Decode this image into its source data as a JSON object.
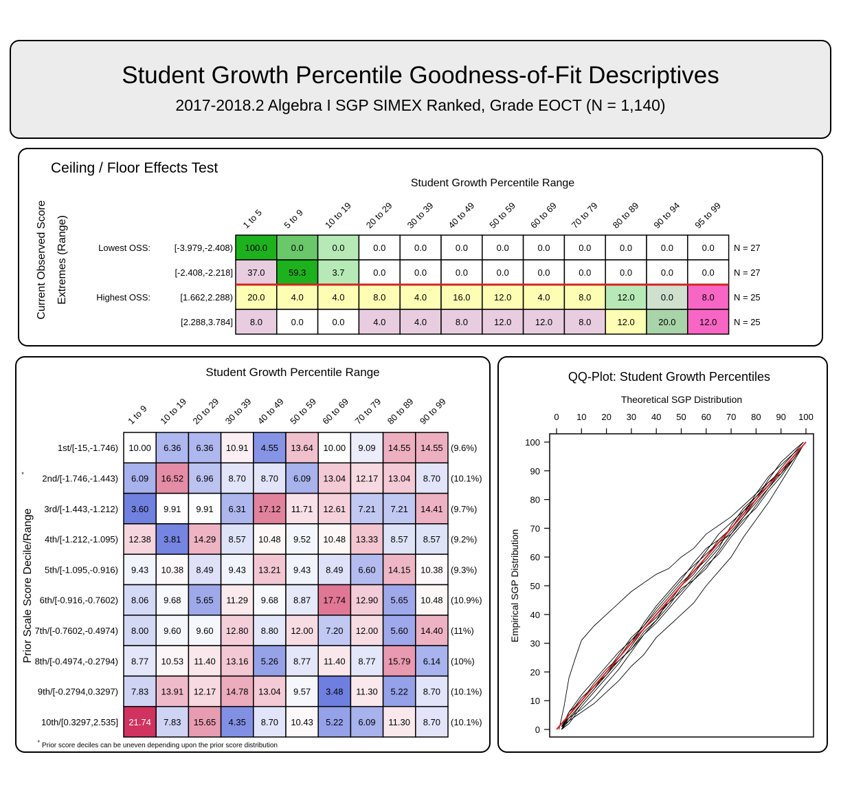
{
  "header": {
    "title": "Student Growth Percentile Goodness-of-Fit Descriptives",
    "subtitle": "2017-2018.2 Algebra I SGP SIMEX Ranked, Grade EOCT (N = 1,140)"
  },
  "chart_data": [
    {
      "type": "table",
      "title": "Ceiling / Floor Effects Test",
      "xlabel": "Student Growth Percentile Range",
      "ylabel": "Current Observed Score Extremes (Range)",
      "columns": [
        "1 to 5",
        "5 to 9",
        "10 to 19",
        "20 to 29",
        "30 to 39",
        "40 to 49",
        "50 to 59",
        "60 to 69",
        "70 to 79",
        "80 to 89",
        "90 to 94",
        "95 to 99"
      ],
      "rows": [
        {
          "group": "Lowest OSS:",
          "range": "[-3.979,-2.408)",
          "n": "N = 27",
          "values": [
            "100.0",
            "0.0",
            "0.0",
            "0.0",
            "0.0",
            "0.0",
            "0.0",
            "0.0",
            "0.0",
            "0.0",
            "0.0",
            "0.0"
          ],
          "colors": [
            "#1db11d",
            "#6ac86a",
            "#b6e9b6",
            "#ffffff",
            "#ffffff",
            "#ffffff",
            "#ffffff",
            "#ffffff",
            "#ffffff",
            "#ffffff",
            "#ffffff",
            "#ffffff"
          ]
        },
        {
          "group": "",
          "range": "[-2.408,-2.218]",
          "n": "N = 27",
          "values": [
            "37.0",
            "59.3",
            "3.7",
            "0.0",
            "0.0",
            "0.0",
            "0.0",
            "0.0",
            "0.0",
            "0.0",
            "0.0",
            "0.0"
          ],
          "colors": [
            "#e8cde0",
            "#1db11d",
            "#b6e9b6",
            "#ffffff",
            "#ffffff",
            "#ffffff",
            "#ffffff",
            "#ffffff",
            "#ffffff",
            "#ffffff",
            "#ffffff",
            "#ffffff"
          ]
        },
        {
          "group": "Highest OSS:",
          "range": "[1.662,2.288)",
          "n": "N = 25",
          "values": [
            "20.0",
            "4.0",
            "4.0",
            "8.0",
            "4.0",
            "16.0",
            "12.0",
            "4.0",
            "8.0",
            "12.0",
            "0.0",
            "8.0"
          ],
          "colors": [
            "#fdfdb4",
            "#fdfdb4",
            "#fdfdb4",
            "#fdfdb4",
            "#fdfdb4",
            "#fdfdb4",
            "#fdfdb4",
            "#fdfdb4",
            "#fdfdb4",
            "#b6e9b6",
            "#cfe0cf",
            "#f766c5"
          ]
        },
        {
          "group": "",
          "range": "[2.288,3.784]",
          "n": "N = 25",
          "values": [
            "8.0",
            "0.0",
            "0.0",
            "4.0",
            "4.0",
            "8.0",
            "12.0",
            "12.0",
            "8.0",
            "12.0",
            "20.0",
            "12.0"
          ],
          "colors": [
            "#e8cde0",
            "#ffffff",
            "#ffffff",
            "#e8cde0",
            "#e8cde0",
            "#e8cde0",
            "#e8cde0",
            "#e8cde0",
            "#e8cde0",
            "#fdfdb4",
            "#a9d4a9",
            "#f766c5"
          ]
        }
      ]
    },
    {
      "type": "heatmap",
      "title": "Student Growth Percentile Range",
      "ylabel": "Prior Scale Score Decile/Range",
      "footnote": "Prior score deciles can be uneven depending upon the prior score distribution",
      "footnote_mark": "*",
      "columns": [
        "1 to 9",
        "10 to 19",
        "20 to 29",
        "30 to 39",
        "40 to 49",
        "50 to 59",
        "60 to 69",
        "70 to 79",
        "80 to 89",
        "90 to 99"
      ],
      "rows": [
        {
          "label": "1st/[-15,-1.746)",
          "pct": "(9.6%)",
          "values": [
            "10.00",
            "6.36",
            "6.36",
            "10.91",
            "4.55",
            "13.64",
            "10.00",
            "9.09",
            "14.55",
            "14.55"
          ]
        },
        {
          "label": "2nd/[-1.746,-1.443)",
          "pct": "(10.1%)",
          "values": [
            "6.09",
            "16.52",
            "6.96",
            "8.70",
            "8.70",
            "6.09",
            "13.04",
            "12.17",
            "13.04",
            "8.70"
          ]
        },
        {
          "label": "3rd/[-1.443,-1.212)",
          "pct": "(9.7%)",
          "values": [
            "3.60",
            "9.91",
            "9.91",
            "6.31",
            "17.12",
            "11.71",
            "12.61",
            "7.21",
            "7.21",
            "14.41"
          ]
        },
        {
          "label": "4th/[-1.212,-1.095)",
          "pct": "(9.2%)",
          "values": [
            "12.38",
            "3.81",
            "14.29",
            "8.57",
            "10.48",
            "9.52",
            "10.48",
            "13.33",
            "8.57",
            "8.57"
          ]
        },
        {
          "label": "5th/[-1.095,-0.916)",
          "pct": "(9.3%)",
          "values": [
            "9.43",
            "10.38",
            "8.49",
            "9.43",
            "13.21",
            "9.43",
            "8.49",
            "6.60",
            "14.15",
            "10.38"
          ]
        },
        {
          "label": "6th/[-0.916,-0.7602)",
          "pct": "(10.9%)",
          "values": [
            "8.06",
            "9.68",
            "5.65",
            "11.29",
            "9.68",
            "8.87",
            "17.74",
            "12.90",
            "5.65",
            "10.48"
          ]
        },
        {
          "label": "7th/[-0.7602,-0.4974)",
          "pct": "(11%)",
          "values": [
            "8.00",
            "9.60",
            "9.60",
            "12.80",
            "8.80",
            "12.00",
            "7.20",
            "12.00",
            "5.60",
            "14.40"
          ]
        },
        {
          "label": "8th/[-0.4974,-0.2794)",
          "pct": "(10%)",
          "values": [
            "8.77",
            "10.53",
            "11.40",
            "13.16",
            "5.26",
            "8.77",
            "11.40",
            "8.77",
            "15.79",
            "6.14"
          ]
        },
        {
          "label": "9th/[-0.2794,0.3297)",
          "pct": "(10.1%)",
          "values": [
            "7.83",
            "13.91",
            "12.17",
            "14.78",
            "13.04",
            "9.57",
            "3.48",
            "11.30",
            "5.22",
            "8.70"
          ]
        },
        {
          "label": "10th/[0.3297,2.535]",
          "pct": "(10.1%)",
          "values": [
            "21.74",
            "7.83",
            "15.65",
            "4.35",
            "8.70",
            "10.43",
            "5.22",
            "6.09",
            "11.30",
            "8.70"
          ]
        }
      ],
      "colors": {
        "low": "#6f7fe0",
        "mid": "#ffffff",
        "high": "#d0335f"
      }
    },
    {
      "type": "line",
      "title": "QQ-Plot: Student Growth Percentiles",
      "xlabel": "Theoretical SGP Distribution",
      "ylabel": "Empirical SGP Distribution",
      "xlim": [
        0,
        100
      ],
      "ylim": [
        0,
        100
      ],
      "xticks": [
        0,
        10,
        20,
        30,
        40,
        50,
        60,
        70,
        80,
        90,
        100
      ],
      "yticks": [
        0,
        10,
        20,
        30,
        40,
        50,
        60,
        70,
        80,
        90,
        100
      ],
      "reference_line": {
        "from": [
          0,
          0
        ],
        "to": [
          100,
          100
        ],
        "color": "#e0201c"
      },
      "series_color": "#000000",
      "series": [
        {
          "x": [
            1,
            3,
            5,
            8,
            10,
            15,
            20,
            25,
            30,
            35,
            40,
            45,
            50,
            55,
            60,
            65,
            70,
            75,
            80,
            85,
            90,
            95,
            99
          ],
          "values": [
            0,
            8,
            18,
            26,
            31,
            36,
            40,
            44,
            48,
            51,
            54,
            56,
            60,
            63,
            68,
            71,
            74,
            78,
            82,
            86,
            90,
            94,
            99
          ]
        },
        {
          "x": [
            2,
            5,
            10,
            15,
            20,
            25,
            30,
            35,
            40,
            45,
            50,
            55,
            60,
            65,
            70,
            75,
            80,
            85,
            90,
            95,
            99
          ],
          "values": [
            0,
            3,
            6,
            9,
            13,
            17,
            22,
            26,
            32,
            36,
            40,
            44,
            50,
            55,
            60,
            67,
            73,
            79,
            86,
            93,
            99
          ]
        },
        {
          "x": [
            2,
            5,
            10,
            15,
            20,
            25,
            30,
            35,
            40,
            45,
            50,
            55,
            60,
            65,
            70,
            75,
            80,
            85,
            90,
            95,
            99
          ],
          "values": [
            1,
            5,
            10,
            15,
            20,
            24,
            28,
            34,
            38,
            43,
            49,
            52,
            56,
            62,
            68,
            74,
            79,
            84,
            90,
            95,
            99
          ]
        },
        {
          "x": [
            2,
            5,
            10,
            15,
            20,
            25,
            30,
            35,
            40,
            45,
            50,
            55,
            60,
            65,
            70,
            75,
            80,
            85,
            90,
            95,
            99
          ],
          "values": [
            0,
            4,
            9,
            14,
            20,
            26,
            32,
            36,
            41,
            46,
            51,
            55,
            59,
            64,
            69,
            74,
            80,
            85,
            91,
            96,
            100
          ]
        },
        {
          "x": [
            2,
            5,
            10,
            15,
            20,
            25,
            30,
            35,
            40,
            45,
            50,
            55,
            60,
            65,
            70,
            75,
            80,
            85,
            90,
            95,
            99
          ],
          "values": [
            1,
            6,
            12,
            17,
            22,
            27,
            31,
            36,
            42,
            47,
            52,
            58,
            63,
            66,
            70,
            75,
            82,
            88,
            92,
            96,
            99
          ]
        },
        {
          "x": [
            2,
            5,
            10,
            15,
            20,
            25,
            30,
            35,
            40,
            45,
            50,
            55,
            60,
            65,
            70,
            75,
            80,
            85,
            90,
            95,
            99
          ],
          "values": [
            0,
            2,
            8,
            13,
            18,
            23,
            29,
            35,
            40,
            44,
            48,
            53,
            58,
            63,
            71,
            77,
            81,
            86,
            89,
            94,
            99
          ]
        },
        {
          "x": [
            2,
            5,
            10,
            15,
            20,
            25,
            30,
            35,
            40,
            45,
            50,
            55,
            60,
            65,
            70,
            75,
            80,
            85,
            90,
            95,
            99
          ],
          "values": [
            0,
            5,
            11,
            15,
            19,
            25,
            30,
            37,
            43,
            48,
            53,
            57,
            61,
            65,
            68,
            73,
            77,
            83,
            88,
            94,
            99
          ]
        },
        {
          "x": [
            2,
            5,
            10,
            15,
            20,
            25,
            30,
            35,
            40,
            45,
            50,
            55,
            60,
            65,
            70,
            75,
            80,
            85,
            90,
            95,
            99
          ],
          "values": [
            1,
            4,
            7,
            11,
            16,
            21,
            27,
            33,
            38,
            45,
            50,
            56,
            62,
            68,
            72,
            76,
            80,
            87,
            93,
            97,
            100
          ]
        },
        {
          "x": [
            2,
            5,
            10,
            15,
            20,
            25,
            30,
            35,
            40,
            45,
            50,
            55,
            60,
            65,
            70,
            75,
            80,
            85,
            90,
            95,
            99
          ],
          "values": [
            0,
            6,
            10,
            16,
            21,
            25,
            31,
            35,
            39,
            44,
            50,
            54,
            60,
            66,
            70,
            76,
            81,
            85,
            90,
            95,
            99
          ]
        },
        {
          "x": [
            2,
            5,
            10,
            15,
            20,
            25,
            30,
            35,
            40,
            45,
            50,
            55,
            60,
            65,
            70,
            75,
            80,
            85,
            90,
            95,
            99
          ],
          "values": [
            1,
            3,
            9,
            14,
            19,
            24,
            28,
            33,
            37,
            42,
            47,
            52,
            57,
            61,
            67,
            72,
            78,
            84,
            89,
            95,
            99
          ]
        }
      ]
    }
  ]
}
